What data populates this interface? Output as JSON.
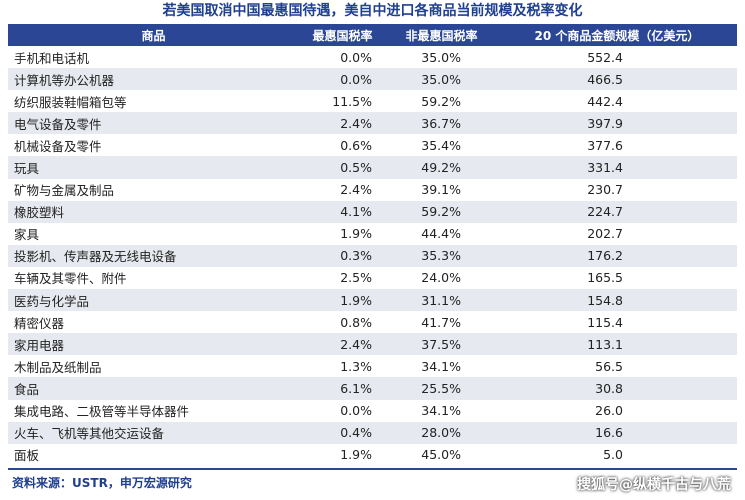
{
  "title": "若美国取消中国最惠国待遇，美自中进口各商品当前规模及税率变化",
  "table": {
    "headers": [
      "商品",
      "最惠国税率",
      "非最惠国税率",
      "20 个商品金额规模（亿美元）"
    ],
    "rows": [
      [
        "手机和电话机",
        "0.0%",
        "35.0%",
        "552.4"
      ],
      [
        "计算机等办公机器",
        "0.0%",
        "35.0%",
        "466.5"
      ],
      [
        "纺织服装鞋帽箱包等",
        "11.5%",
        "59.2%",
        "442.4"
      ],
      [
        "电气设备及零件",
        "2.4%",
        "36.7%",
        "397.9"
      ],
      [
        "机械设备及零件",
        "0.6%",
        "35.4%",
        "377.6"
      ],
      [
        "玩具",
        "0.5%",
        "49.2%",
        "331.4"
      ],
      [
        "矿物与金属及制品",
        "2.4%",
        "39.1%",
        "230.7"
      ],
      [
        "橡胶塑料",
        "4.1%",
        "59.2%",
        "224.7"
      ],
      [
        "家具",
        "1.9%",
        "44.4%",
        "202.7"
      ],
      [
        "投影机、传声器及无线电设备",
        "0.3%",
        "35.3%",
        "176.2"
      ],
      [
        "车辆及其零件、附件",
        "2.5%",
        "24.0%",
        "165.5"
      ],
      [
        "医药与化学品",
        "1.9%",
        "31.1%",
        "154.8"
      ],
      [
        "精密仪器",
        "0.8%",
        "41.7%",
        "115.4"
      ],
      [
        "家用电器",
        "2.4%",
        "37.5%",
        "113.1"
      ],
      [
        "木制品及纸制品",
        "1.3%",
        "34.1%",
        "56.5"
      ],
      [
        "食品",
        "6.1%",
        "25.5%",
        "30.8"
      ],
      [
        "集成电路、二极管等半导体器件",
        "0.0%",
        "34.1%",
        "26.0"
      ],
      [
        "火车、飞机等其他交运设备",
        "0.4%",
        "28.0%",
        "16.6"
      ],
      [
        "面板",
        "1.9%",
        "45.0%",
        "5.0"
      ]
    ]
  },
  "source": "资料来源：USTR，申万宏源研究",
  "watermark": "搜狐号@纵横千古与八荒",
  "colors": {
    "header_bg": "#2a4694",
    "title": "#1f3f8f",
    "stripe": "#e6e9ef"
  }
}
